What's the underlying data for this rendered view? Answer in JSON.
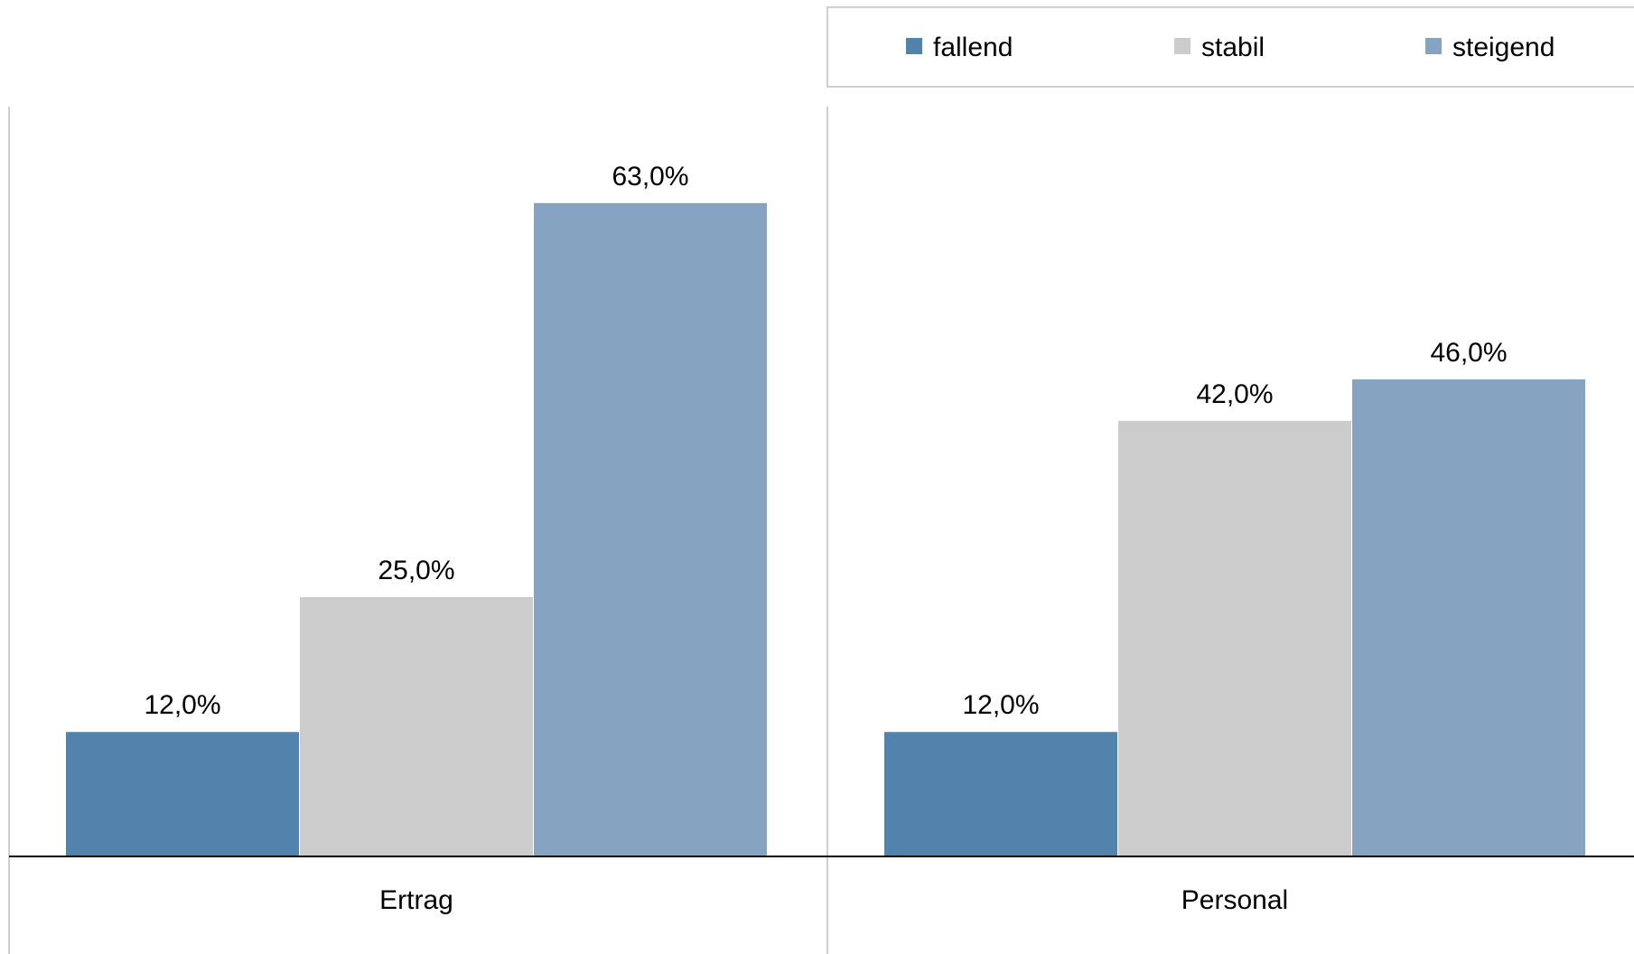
{
  "chart_data": {
    "type": "bar",
    "categories": [
      "Ertrag",
      "Personal"
    ],
    "series": [
      {
        "name": "fallend",
        "color": "#5283ad",
        "values": [
          12.0,
          12.0
        ],
        "labels": [
          "12,0%",
          "12,0%"
        ]
      },
      {
        "name": "stabil",
        "color": "#cccccc",
        "values": [
          25.0,
          42.0
        ],
        "labels": [
          "25,0%",
          "42,0%"
        ]
      },
      {
        "name": "steigend",
        "color": "#86a3c2",
        "values": [
          63.0,
          46.0
        ],
        "labels": [
          "63,0%",
          "46,0%"
        ]
      }
    ],
    "ylim": [
      0,
      73
    ],
    "grid": false,
    "legend_position": "top-right",
    "axis_color": "#000000",
    "divider_color": "#bfbfbf"
  }
}
